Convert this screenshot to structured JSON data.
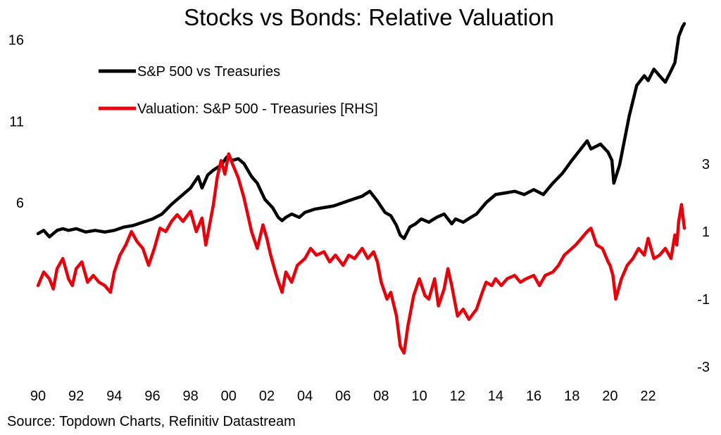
{
  "chart_data": {
    "type": "line",
    "title": "Stocks vs Bonds: Relative Valuation",
    "source": "Source: Topdown Charts, Refinitiv Datastream",
    "x_tick_labels": [
      "90",
      "92",
      "94",
      "96",
      "98",
      "00",
      "02",
      "04",
      "06",
      "08",
      "10",
      "12",
      "14",
      "16",
      "18",
      "20",
      "22"
    ],
    "x_ticks": [
      1990,
      1992,
      1994,
      1996,
      1998,
      2000,
      2002,
      2004,
      2006,
      2008,
      2010,
      2012,
      2014,
      2016,
      2018,
      2020,
      2022
    ],
    "xlim": [
      1990,
      2023.9
    ],
    "y_left": {
      "ticks": [
        6,
        11,
        16
      ],
      "tick_labels": [
        "6",
        "11",
        "16"
      ],
      "range": [
        -4.9,
        17.5
      ]
    },
    "y_right": {
      "ticks": [
        3,
        1,
        -1,
        -3
      ],
      "tick_labels": [
        "3",
        "1",
        "-1",
        "-3"
      ],
      "range": [
        -3.4,
        7.4
      ]
    },
    "legend_position": "top-left",
    "grid": false,
    "series": [
      {
        "name": "S&P 500 vs Treasurie",
        "name_suffix": "s",
        "axis": "left",
        "color": "#000000",
        "x": [
          1990.0,
          1990.3,
          1990.6,
          1990.8,
          1991.0,
          1991.3,
          1991.6,
          1992.0,
          1992.5,
          1993.0,
          1993.5,
          1994.0,
          1994.5,
          1995.0,
          1995.5,
          1996.0,
          1996.5,
          1997.0,
          1997.5,
          1998.0,
          1998.4,
          1998.6,
          1998.9,
          1999.2,
          1999.6,
          1999.9,
          2000.2,
          2000.5,
          2000.8,
          2001.2,
          2001.5,
          2001.9,
          2002.3,
          2002.6,
          2002.8,
          2003.0,
          2003.3,
          2003.7,
          2004.0,
          2004.5,
          2005.0,
          2005.5,
          2006.0,
          2006.5,
          2007.0,
          2007.4,
          2007.8,
          2008.2,
          2008.5,
          2008.8,
          2009.0,
          2009.2,
          2009.5,
          2009.8,
          2010.1,
          2010.5,
          2010.9,
          2011.3,
          2011.7,
          2011.9,
          2012.3,
          2012.7,
          2013.0,
          2013.5,
          2014.0,
          2014.5,
          2015.0,
          2015.5,
          2016.0,
          2016.5,
          2017.0,
          2017.5,
          2018.0,
          2018.4,
          2018.8,
          2019.0,
          2019.5,
          2019.9,
          2020.1,
          2020.2,
          2020.5,
          2020.8,
          2021.0,
          2021.4,
          2021.8,
          2022.0,
          2022.3,
          2022.6,
          2022.9,
          2023.2,
          2023.4,
          2023.6,
          2023.8,
          2023.9
        ],
        "y": [
          4.1,
          4.3,
          3.9,
          4.1,
          4.3,
          4.4,
          4.3,
          4.4,
          4.2,
          4.3,
          4.2,
          4.3,
          4.5,
          4.6,
          4.8,
          5.0,
          5.3,
          5.9,
          6.4,
          6.9,
          7.6,
          6.9,
          7.7,
          8.0,
          8.3,
          8.8,
          8.6,
          8.7,
          8.4,
          7.6,
          7.2,
          6.2,
          5.7,
          5.1,
          4.9,
          5.1,
          5.3,
          5.1,
          5.4,
          5.6,
          5.7,
          5.8,
          6.0,
          6.2,
          6.4,
          6.7,
          6.1,
          5.4,
          5.2,
          4.6,
          4.0,
          3.8,
          4.5,
          4.7,
          5.0,
          4.8,
          5.1,
          5.3,
          4.7,
          5.0,
          4.8,
          5.1,
          5.3,
          6.0,
          6.5,
          6.6,
          6.7,
          6.5,
          6.8,
          6.5,
          7.2,
          7.8,
          8.6,
          9.2,
          9.8,
          9.3,
          9.6,
          9.1,
          8.6,
          7.2,
          8.3,
          10.1,
          11.3,
          13.2,
          13.8,
          13.5,
          14.2,
          13.8,
          13.4,
          14.1,
          14.6,
          16.2,
          16.8,
          17.0
        ]
      },
      {
        "name": "Valuation: S&P 500 - Treasuries [RHS]",
        "axis": "right",
        "color": "#e8000b",
        "x": [
          1990.0,
          1990.3,
          1990.6,
          1990.8,
          1991.0,
          1991.3,
          1991.6,
          1991.8,
          1992.0,
          1992.3,
          1992.6,
          1992.9,
          1993.2,
          1993.5,
          1993.8,
          1994.0,
          1994.3,
          1994.6,
          1994.9,
          1995.2,
          1995.5,
          1995.8,
          1996.1,
          1996.4,
          1996.7,
          1997.0,
          1997.3,
          1997.6,
          1998.0,
          1998.3,
          1998.6,
          1998.8,
          1999.0,
          1999.2,
          1999.4,
          1999.6,
          1999.8,
          2000.0,
          2000.2,
          2000.5,
          2000.8,
          2001.0,
          2001.2,
          2001.5,
          2001.8,
          2002.0,
          2002.2,
          2002.5,
          2002.8,
          2003.0,
          2003.3,
          2003.6,
          2004.0,
          2004.3,
          2004.6,
          2005.0,
          2005.3,
          2005.6,
          2006.0,
          2006.3,
          2006.6,
          2007.0,
          2007.3,
          2007.6,
          2007.8,
          2008.0,
          2008.3,
          2008.5,
          2008.8,
          2009.0,
          2009.2,
          2009.4,
          2009.7,
          2010.0,
          2010.3,
          2010.5,
          2010.8,
          2011.0,
          2011.3,
          2011.5,
          2011.7,
          2012.0,
          2012.3,
          2012.6,
          2013.0,
          2013.3,
          2013.5,
          2013.8,
          2014.0,
          2014.3,
          2014.6,
          2015.0,
          2015.3,
          2015.6,
          2016.0,
          2016.3,
          2016.6,
          2017.0,
          2017.3,
          2017.6,
          2018.0,
          2018.2,
          2018.5,
          2018.8,
          2019.0,
          2019.3,
          2019.6,
          2019.9,
          2020.0,
          2020.15,
          2020.3,
          2020.6,
          2020.9,
          2021.2,
          2021.5,
          2021.8,
          2022.0,
          2022.3,
          2022.6,
          2022.9,
          2023.2,
          2023.4,
          2023.5,
          2023.6,
          2023.75,
          2023.9
        ],
        "y": [
          -0.6,
          -0.2,
          -0.4,
          -0.7,
          -0.1,
          0.2,
          -0.4,
          -0.6,
          -0.1,
          0.1,
          -0.5,
          -0.3,
          -0.5,
          -0.6,
          -0.8,
          -0.2,
          0.3,
          0.6,
          1.0,
          0.7,
          0.5,
          0.0,
          0.5,
          1.1,
          1.0,
          1.3,
          1.5,
          1.3,
          1.6,
          1.0,
          1.4,
          0.6,
          1.2,
          1.8,
          2.6,
          3.1,
          2.7,
          3.3,
          3.0,
          2.6,
          2.0,
          1.5,
          1.0,
          0.5,
          1.2,
          0.8,
          0.3,
          -0.3,
          -0.8,
          -0.2,
          -0.5,
          0.0,
          0.2,
          0.5,
          0.3,
          0.4,
          0.1,
          0.3,
          0.0,
          0.3,
          0.2,
          0.5,
          0.2,
          0.4,
          0.1,
          -0.5,
          -1.0,
          -0.8,
          -1.5,
          -2.4,
          -2.6,
          -1.8,
          -0.9,
          -0.4,
          -0.9,
          -1.0,
          -0.4,
          -1.2,
          -0.7,
          -0.1,
          -0.6,
          -1.5,
          -1.3,
          -1.6,
          -1.3,
          -0.8,
          -0.5,
          -0.6,
          -0.4,
          -0.6,
          -0.4,
          -0.3,
          -0.5,
          -0.4,
          -0.3,
          -0.6,
          -0.3,
          -0.2,
          0.0,
          0.3,
          0.5,
          0.6,
          0.8,
          1.0,
          1.1,
          0.6,
          0.5,
          0.1,
          0.0,
          -0.3,
          -1.0,
          -0.4,
          0.0,
          0.2,
          0.5,
          0.3,
          0.8,
          0.2,
          0.3,
          0.5,
          0.2,
          0.9,
          0.6,
          1.3,
          1.8,
          1.1
        ]
      }
    ]
  }
}
